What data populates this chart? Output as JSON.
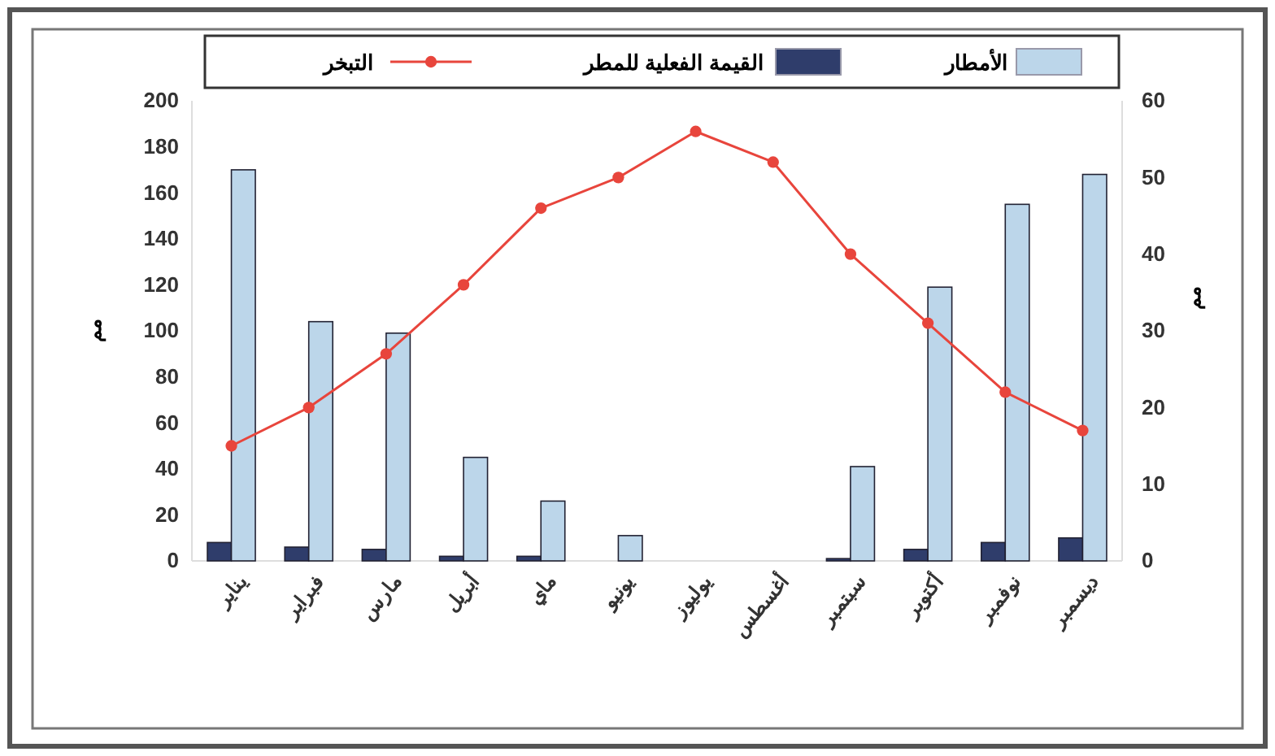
{
  "chart_data": {
    "type": "bar",
    "categories": [
      "يناير",
      "فبراير",
      "مارس",
      "أبريل",
      "ماي",
      "يونيو",
      "يوليوز",
      "أغسطس",
      "سبتمبر",
      "أكتوبر",
      "نوفمبر",
      "ديسمبر"
    ],
    "series": [
      {
        "name": "القيمة الفعلية للمطر",
        "color": "#2f3d6b",
        "values": [
          8,
          6,
          5,
          2,
          2,
          0,
          0,
          0,
          1,
          5,
          8,
          10
        ]
      },
      {
        "name": "الأمطار",
        "color": "#bcd6ea",
        "values": [
          170,
          104,
          99,
          45,
          26,
          11,
          0,
          0,
          41,
          119,
          155,
          168
        ]
      },
      {
        "name": "التبخر",
        "color": "#e8453c",
        "type": "line",
        "axis": "y2",
        "values": [
          15,
          20,
          27,
          36,
          46,
          50,
          56,
          52,
          40,
          31,
          22,
          17
        ]
      }
    ],
    "ylabel": "مم",
    "y2label": "مم",
    "ylim": [
      0,
      200
    ],
    "yticks": [
      0,
      20,
      40,
      60,
      80,
      100,
      120,
      140,
      160,
      180,
      200
    ],
    "y2lim": [
      0,
      60
    ],
    "y2ticks": [
      0,
      10,
      20,
      30,
      40,
      50,
      60
    ],
    "legend": "top",
    "marker": "circle",
    "grid": false
  }
}
